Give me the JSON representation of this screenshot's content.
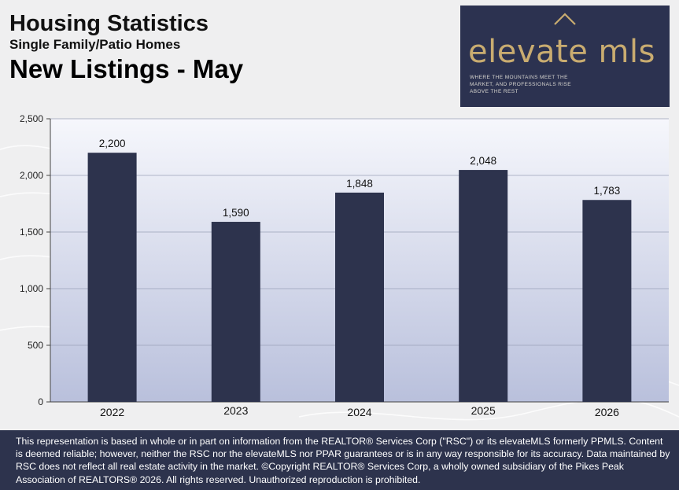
{
  "header": {
    "title": "Housing Statistics",
    "subtitle": "Single Family/Patio Homes",
    "heading": "New Listings - May"
  },
  "logo": {
    "name": "elevate mls",
    "tagline": "Where the mountains meet the market, and professionals rise above the rest"
  },
  "chart_data": {
    "type": "bar",
    "categories": [
      "2022",
      "2023",
      "2024",
      "2025",
      "2026"
    ],
    "values": [
      2200,
      1590,
      1848,
      2048,
      1783
    ],
    "value_labels": [
      "2,200",
      "1,590",
      "1,848",
      "2,048",
      "1,783"
    ],
    "ylim": [
      0,
      2500
    ],
    "yticks": [
      0,
      500,
      1000,
      1500,
      2000,
      2500
    ],
    "ytick_labels": [
      "0",
      "500",
      "1,000",
      "1,500",
      "2,000",
      "2,500"
    ],
    "grid": true,
    "legend": "none",
    "bar_color": "#2d334d"
  },
  "footer": {
    "disclaimer": "This representation is based in whole or in part on information from the REALTOR® Services Corp (\"RSC\") or its elevateMLS formerly PPMLS. Content is deemed reliable; however, neither the RSC nor the elevateMLS nor PPAR guarantees or is in any way responsible for its accuracy. Data maintained by RSC does not reflect all real estate activity in the market. ©Copyright REALTOR® Services Corp, a wholly owned subsidiary of the Pikes Peak Association of REALTORS® 2026. All rights reserved. Unauthorized reproduction is prohibited."
  },
  "colors": {
    "brand_navy": "#2d334d",
    "brand_gold": "#c9ac70"
  }
}
